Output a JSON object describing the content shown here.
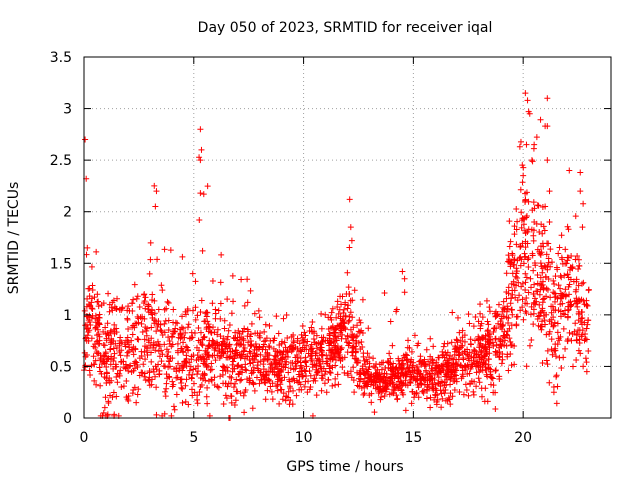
{
  "chart_data": {
    "type": "scatter",
    "title": "Day 050 of 2023, SRMTID for receiver iqal",
    "xlabel": "GPS time / hours",
    "ylabel": "SRMTID / TECUs",
    "xlim": [
      0,
      24
    ],
    "ylim": [
      0,
      3.5
    ],
    "xticks": [
      "0",
      "5",
      "10",
      "15",
      "20"
    ],
    "yticks": [
      "0",
      "0.5",
      "1",
      "1.5",
      "2",
      "2.5",
      "3",
      "3.5"
    ],
    "xtick_values": [
      0,
      5,
      10,
      15,
      20
    ],
    "ytick_values": [
      0,
      0.5,
      1,
      1.5,
      2,
      2.5,
      3,
      3.5
    ],
    "grid": true,
    "marker": "+",
    "color": "#ff0000",
    "series": [
      {
        "name": "SRMTID",
        "note": "dense cloud of samples; profile below gives typical centre, spread and peak envelope per time window",
        "profile": [
          {
            "t": 0.0,
            "center": 0.9,
            "spread": 0.35,
            "peak": 2.7
          },
          {
            "t": 0.5,
            "center": 0.8,
            "spread": 0.35,
            "peak": 1.6
          },
          {
            "t": 1.0,
            "center": 0.6,
            "spread": 0.4,
            "peak": 1.7
          },
          {
            "t": 2.0,
            "center": 0.7,
            "spread": 0.35,
            "peak": 1.5
          },
          {
            "t": 3.0,
            "center": 0.8,
            "spread": 0.45,
            "peak": 2.2
          },
          {
            "t": 4.0,
            "center": 0.5,
            "spread": 0.35,
            "peak": 1.6
          },
          {
            "t": 5.3,
            "center": 0.7,
            "spread": 0.35,
            "peak": 2.8
          },
          {
            "t": 6.5,
            "center": 0.6,
            "spread": 0.3,
            "peak": 1.6
          },
          {
            "t": 8.0,
            "center": 0.55,
            "spread": 0.25,
            "peak": 1.4
          },
          {
            "t": 9.0,
            "center": 0.45,
            "spread": 0.22,
            "peak": 1.1
          },
          {
            "t": 10.0,
            "center": 0.55,
            "spread": 0.22,
            "peak": 1.05
          },
          {
            "t": 11.0,
            "center": 0.6,
            "spread": 0.22,
            "peak": 1.0
          },
          {
            "t": 12.0,
            "center": 0.9,
            "spread": 0.35,
            "peak": 2.1
          },
          {
            "t": 13.0,
            "center": 0.35,
            "spread": 0.15,
            "peak": 0.8
          },
          {
            "t": 14.0,
            "center": 0.4,
            "spread": 0.15,
            "peak": 1.4
          },
          {
            "t": 15.0,
            "center": 0.45,
            "spread": 0.2,
            "peak": 1.1
          },
          {
            "t": 16.0,
            "center": 0.35,
            "spread": 0.15,
            "peak": 1.1
          },
          {
            "t": 17.0,
            "center": 0.5,
            "spread": 0.2,
            "peak": 1.0
          },
          {
            "t": 18.0,
            "center": 0.6,
            "spread": 0.25,
            "peak": 1.1
          },
          {
            "t": 19.0,
            "center": 0.75,
            "spread": 0.3,
            "peak": 1.2
          },
          {
            "t": 20.0,
            "center": 1.7,
            "spread": 0.55,
            "peak": 3.15
          },
          {
            "t": 20.5,
            "center": 1.4,
            "spread": 0.5,
            "peak": 2.6
          },
          {
            "t": 21.0,
            "center": 1.2,
            "spread": 0.45,
            "peak": 3.1
          },
          {
            "t": 21.5,
            "center": 0.9,
            "spread": 0.4,
            "peak": 1.6
          },
          {
            "t": 22.0,
            "center": 1.2,
            "spread": 0.45,
            "peak": 2.4
          },
          {
            "t": 22.5,
            "center": 1.1,
            "spread": 0.4,
            "peak": 2.4
          },
          {
            "t": 23.0,
            "center": 1.0,
            "spread": 0.35,
            "peak": 1.7
          }
        ],
        "outliers": [
          {
            "x": 0.05,
            "y": 2.7
          },
          {
            "x": 0.1,
            "y": 2.32
          },
          {
            "x": 0.15,
            "y": 1.65
          },
          {
            "x": 3.2,
            "y": 2.25
          },
          {
            "x": 3.3,
            "y": 2.2
          },
          {
            "x": 3.25,
            "y": 2.05
          },
          {
            "x": 5.3,
            "y": 2.8
          },
          {
            "x": 5.35,
            "y": 2.6
          },
          {
            "x": 5.3,
            "y": 2.5
          },
          {
            "x": 5.3,
            "y": 2.18
          },
          {
            "x": 5.25,
            "y": 1.92
          },
          {
            "x": 5.4,
            "y": 1.62
          },
          {
            "x": 12.1,
            "y": 2.12
          },
          {
            "x": 12.15,
            "y": 1.85
          },
          {
            "x": 12.2,
            "y": 1.72
          },
          {
            "x": 14.5,
            "y": 1.42
          },
          {
            "x": 14.6,
            "y": 1.35
          },
          {
            "x": 20.1,
            "y": 3.15
          },
          {
            "x": 20.2,
            "y": 3.08
          },
          {
            "x": 20.25,
            "y": 2.97
          },
          {
            "x": 20.3,
            "y": 2.95
          },
          {
            "x": 20.15,
            "y": 2.65
          },
          {
            "x": 19.85,
            "y": 2.63
          },
          {
            "x": 20.0,
            "y": 2.35
          },
          {
            "x": 20.4,
            "y": 2.5
          },
          {
            "x": 20.5,
            "y": 2.65
          },
          {
            "x": 21.1,
            "y": 3.1
          },
          {
            "x": 21.0,
            "y": 2.83
          },
          {
            "x": 21.1,
            "y": 2.83
          },
          {
            "x": 21.1,
            "y": 2.5
          },
          {
            "x": 21.2,
            "y": 2.2
          },
          {
            "x": 21.0,
            "y": 2.05
          },
          {
            "x": 21.2,
            "y": 1.9
          },
          {
            "x": 21.4,
            "y": 0.3
          },
          {
            "x": 21.5,
            "y": 0.4
          },
          {
            "x": 21.4,
            "y": 0.25
          },
          {
            "x": 22.1,
            "y": 2.4
          },
          {
            "x": 22.6,
            "y": 2.38
          },
          {
            "x": 22.6,
            "y": 2.2
          },
          {
            "x": 22.7,
            "y": 1.85
          },
          {
            "x": 22.9,
            "y": 0.45
          },
          {
            "x": 0.9,
            "y": 0.05
          },
          {
            "x": 1.0,
            "y": 0.02
          },
          {
            "x": 0.95,
            "y": 0.1
          },
          {
            "x": 6.6,
            "y": 0.0
          },
          {
            "x": 6.65,
            "y": 0.0
          }
        ]
      }
    ]
  }
}
